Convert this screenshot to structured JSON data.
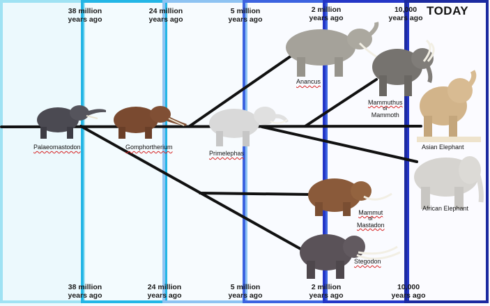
{
  "colors": {
    "band_1": "#9fe2f3",
    "band_2": "#23b6e6",
    "band_3": "#5a9be8",
    "band_4": "#3c63e0",
    "band_5": "#2436c7",
    "band_6": "#1c2aa0",
    "branch_line": "#111111"
  },
  "time_labels": {
    "top": [
      {
        "line1": "38 million",
        "line2": "years ago"
      },
      {
        "line1": "24 million",
        "line2": "years ago"
      },
      {
        "line1": "5 million",
        "line2": "years ago"
      },
      {
        "line1": "2 million",
        "line2": "years ago"
      },
      {
        "line1": "10,000",
        "line2": "years ago"
      }
    ],
    "bottom": [
      {
        "line1": "38 million",
        "line2": "years ago"
      },
      {
        "line1": "24 million",
        "line2": "years ago"
      },
      {
        "line1": "5 million",
        "line2": "years ago"
      },
      {
        "line1": "2 million",
        "line2": "years ago"
      },
      {
        "line1": "10,000",
        "line2": "years ago"
      }
    ],
    "today": "TODAY"
  },
  "animals": {
    "palaeomastodon": {
      "label": "Palaeomastodon",
      "icon": "palaeomastodon-illustration"
    },
    "gomphotherium": {
      "label": "Gomphortherium",
      "icon": "gomphotherium-illustration"
    },
    "primelephas": {
      "label": "Primelephas",
      "icon": "primelephas-illustration"
    },
    "anancus": {
      "label": "Anancus",
      "icon": "anancus-illustration"
    },
    "mammuthus": {
      "line1": "Mammuthus",
      "line2": "or",
      "line3": "Mammoth",
      "icon": "mammoth-illustration"
    },
    "asian_elephant": {
      "label": "Asian Elephant",
      "icon": "asian-elephant-illustration"
    },
    "african_elephant": {
      "label": "African Elephant",
      "icon": "african-elephant-illustration"
    },
    "mammut": {
      "line1": "Mammut",
      "line2": "or",
      "line3": "Mastadon",
      "icon": "mastodon-illustration"
    },
    "stegodon": {
      "label": "Stegodon",
      "icon": "stegodon-illustration"
    }
  }
}
